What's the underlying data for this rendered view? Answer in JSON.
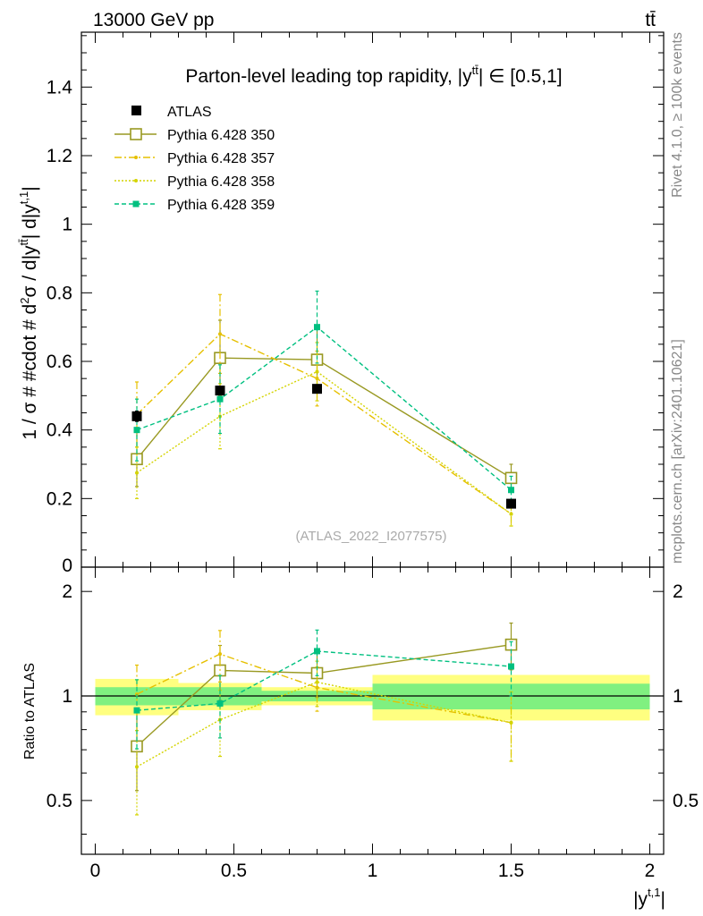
{
  "header": {
    "left": "13000 GeV pp",
    "right": "tt̄"
  },
  "side_labels": {
    "rivet": "Rivet 4.1.0, ≥ 100k events",
    "mcplots": "mcplots.cern.ch [arXiv:2401.10621]"
  },
  "chart_data": {
    "type": "scatter",
    "title": "Parton-level leading top rapidity, |y^tt̄| ∈ [0.5,1]",
    "title_main": "Parton-level leading top rapidity, |y",
    "title_sup": "tt̄",
    "title_tail": "| ∈ [0.5,1]",
    "analysis_tag": "(ATLAS_2022_I2077575)",
    "ylabel": "1 / σ # #cdot # d²σ / d|y^tt̄| d|y^t,1|",
    "ylabel_parts": {
      "a": "1 / σ # #cdot # d",
      "sup1": "2",
      "b": "σ / d|y",
      "sup2": "tt̄",
      "c": "| d|y",
      "sup3": "t,1",
      "d": "|"
    },
    "xlabel": "|y^t,1|",
    "xlabel_parts": {
      "a": "|y",
      "sup": "t,1",
      "b": "|"
    },
    "ratio_ylabel": "Ratio to ATLAS",
    "xlim": [
      -0.05,
      2.05
    ],
    "ylim": [
      0,
      1.56
    ],
    "ratio_ylim": [
      0.35,
      2.35
    ],
    "x_ticks": [
      {
        "v": 0,
        "label": "0"
      },
      {
        "v": 0.5,
        "label": "0.5"
      },
      {
        "v": 1,
        "label": "1"
      },
      {
        "v": 1.5,
        "label": "1.5"
      },
      {
        "v": 2,
        "label": "2"
      }
    ],
    "y_ticks": [
      {
        "v": 0,
        "label": "0"
      },
      {
        "v": 0.2,
        "label": "0.2"
      },
      {
        "v": 0.4,
        "label": "0.4"
      },
      {
        "v": 0.6,
        "label": "0.6"
      },
      {
        "v": 0.8,
        "label": "0.8"
      },
      {
        "v": 1.0,
        "label": "1"
      },
      {
        "v": 1.2,
        "label": "1.2"
      },
      {
        "v": 1.4,
        "label": "1.4"
      }
    ],
    "ratio_y_ticks": [
      {
        "v": 0.5,
        "label": "0.5"
      },
      {
        "v": 1,
        "label": "1"
      },
      {
        "v": 2,
        "label": "2"
      }
    ],
    "bins": [
      {
        "lo": 0.0,
        "hi": 0.3,
        "stat": 0.06,
        "tot": 0.12
      },
      {
        "lo": 0.3,
        "hi": 0.6,
        "stat": 0.06,
        "tot": 0.09
      },
      {
        "lo": 0.6,
        "hi": 1.0,
        "stat": 0.035,
        "tot": 0.06
      },
      {
        "lo": 1.0,
        "hi": 2.0,
        "stat": 0.085,
        "tot": 0.15
      }
    ],
    "data_series": {
      "name": "ATLAS",
      "x": [
        0.15,
        0.45,
        0.8,
        1.5
      ],
      "y": [
        0.44,
        0.515,
        0.52,
        0.185
      ],
      "err": [
        0.015,
        0.012,
        0.012,
        0.01
      ]
    },
    "series": [
      {
        "name": "Pythia 6.428 350",
        "color": "#999922",
        "dash": "",
        "marker": "open-square",
        "x": [
          0.15,
          0.45,
          0.8,
          1.5
        ],
        "y": [
          0.315,
          0.61,
          0.605,
          0.26
        ],
        "err": [
          0.08,
          0.11,
          0.09,
          0.04
        ]
      },
      {
        "name": "Pythia 6.428 357",
        "color": "#e6c000",
        "dash": "8,3,2,3",
        "marker": "small-dot",
        "x": [
          0.15,
          0.45,
          0.8,
          1.5
        ],
        "y": [
          0.445,
          0.68,
          0.55,
          0.155
        ],
        "err": [
          0.095,
          0.115,
          0.08,
          0.035
        ]
      },
      {
        "name": "Pythia 6.428 358",
        "color": "#d4d400",
        "dash": "2,2",
        "marker": "small-dot",
        "x": [
          0.15,
          0.45,
          0.8,
          1.5
        ],
        "y": [
          0.275,
          0.44,
          0.57,
          0.155
        ],
        "err": [
          0.075,
          0.095,
          0.085,
          0.035
        ]
      },
      {
        "name": "Pythia 6.428 359",
        "color": "#00c080",
        "dash": "5,3",
        "marker": "filled-square",
        "x": [
          0.15,
          0.45,
          0.8,
          1.5
        ],
        "y": [
          0.4,
          0.49,
          0.7,
          0.225
        ],
        "err": [
          0.09,
          0.1,
          0.105,
          0.04
        ]
      }
    ]
  }
}
